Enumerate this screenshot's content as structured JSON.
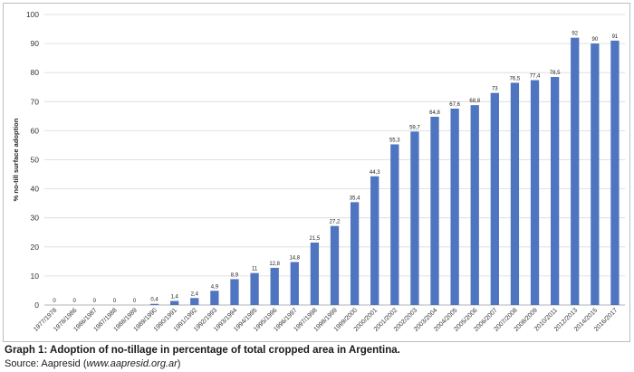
{
  "chart_data": {
    "type": "bar",
    "ylabel": "% no-till surface adoption",
    "ylim": [
      0,
      100
    ],
    "yticks": [
      0,
      10,
      20,
      30,
      40,
      50,
      60,
      70,
      80,
      90,
      100
    ],
    "grid": true,
    "bar_color": "#4f74c0",
    "categories": [
      "1977/1978",
      "1978/1986",
      "1986/1987",
      "1987/1988",
      "1988/1989",
      "1989/1990",
      "1990/1991",
      "1991/1992",
      "1992/1993",
      "1993/1994",
      "1994/1995",
      "1995/1996",
      "1996/1997",
      "1997/1998",
      "1998/1999",
      "1999/2000",
      "2000/2001",
      "2001/2002",
      "2002/2003",
      "2003/2004",
      "2004/2005",
      "2005/2006",
      "2006/2007",
      "2007/2008",
      "2008/2009",
      "2010/2011",
      "2012/2013",
      "2014/2015",
      "2016/2017"
    ],
    "values": [
      0,
      0,
      0,
      0,
      0,
      0.4,
      1.4,
      2.4,
      4.9,
      8.9,
      11,
      12.8,
      14.8,
      21.5,
      27.2,
      35.4,
      44.3,
      55.3,
      59.7,
      64.8,
      67.6,
      68.8,
      73,
      76.5,
      77.4,
      78.5,
      92,
      90,
      91
    ],
    "data_labels": [
      "0",
      "0",
      "0",
      "0",
      "0",
      "0,4",
      "1,4",
      "2,4",
      "4,9",
      "8,9",
      "11",
      "12,8",
      "14,8",
      "21,5",
      "27,2",
      "35,4",
      "44,3",
      "55,3",
      "59,7",
      "64,8",
      "67,6",
      "68,8",
      "73",
      "76,5",
      "77,4",
      "78,5",
      "92",
      "90",
      "91"
    ]
  },
  "caption": {
    "title": "Graph 1: Adoption of no-tillage in percentage of total cropped area in Argentina.",
    "source_prefix": "Source: Aapresid (",
    "source_url": "www.aapresid.org.ar",
    "source_suffix": ")"
  }
}
